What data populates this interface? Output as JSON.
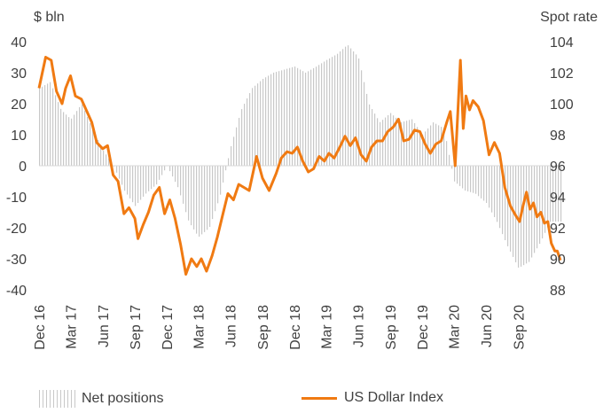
{
  "chart_data": {
    "type": "bar+line",
    "left_axis_unit": "$ bln",
    "right_axis_unit": "Spot rate",
    "left_ylim": [
      -40,
      40
    ],
    "left_ticks": [
      "40",
      "30",
      "20",
      "10",
      "0",
      "-10",
      "-20",
      "-30",
      "-40"
    ],
    "right_ylim": [
      88,
      104
    ],
    "right_ticks": [
      "104",
      "102",
      "100",
      "98",
      "96",
      "94",
      "92",
      "90",
      "88"
    ],
    "x_range": [
      "2016-12-01",
      "2020-12-31"
    ],
    "x_ticks": [
      {
        "label": "Dec 16",
        "date": "2016-12-01"
      },
      {
        "label": "Mar 17",
        "date": "2017-03-01"
      },
      {
        "label": "Jun 17",
        "date": "2017-06-01"
      },
      {
        "label": "Sep 17",
        "date": "2017-09-01"
      },
      {
        "label": "Dec 17",
        "date": "2017-12-01"
      },
      {
        "label": "Mar 18",
        "date": "2018-03-01"
      },
      {
        "label": "Jun 18",
        "date": "2018-06-01"
      },
      {
        "label": "Sep 18",
        "date": "2018-09-01"
      },
      {
        "label": "Dec 18",
        "date": "2018-12-01"
      },
      {
        "label": "Mar 19",
        "date": "2019-03-01"
      },
      {
        "label": "Jun 19",
        "date": "2019-06-01"
      },
      {
        "label": "Sep 19",
        "date": "2019-09-01"
      },
      {
        "label": "Dec 19",
        "date": "2019-12-01"
      },
      {
        "label": "Mar 20",
        "date": "2020-03-01"
      },
      {
        "label": "Jun 20",
        "date": "2020-06-01"
      },
      {
        "label": "Sep 20",
        "date": "2020-09-01"
      }
    ],
    "grid": false,
    "legend_placement": "bottom",
    "series": [
      {
        "name": "Net positions",
        "kind": "bar",
        "axis": "left",
        "color": "#c8c8c8",
        "points": [
          [
            "2016-12-01",
            25
          ],
          [
            "2017-01-01",
            27
          ],
          [
            "2017-02-01",
            18
          ],
          [
            "2017-03-01",
            15
          ],
          [
            "2017-04-01",
            20
          ],
          [
            "2017-05-01",
            12
          ],
          [
            "2017-06-01",
            5
          ],
          [
            "2017-07-01",
            0
          ],
          [
            "2017-08-01",
            -8
          ],
          [
            "2017-09-01",
            -13
          ],
          [
            "2017-10-01",
            -9
          ],
          [
            "2017-11-01",
            -6
          ],
          [
            "2017-12-01",
            0
          ],
          [
            "2018-01-01",
            -7
          ],
          [
            "2018-02-01",
            -18
          ],
          [
            "2018-03-01",
            -23
          ],
          [
            "2018-04-01",
            -20
          ],
          [
            "2018-05-01",
            -10
          ],
          [
            "2018-06-01",
            6
          ],
          [
            "2018-07-01",
            18
          ],
          [
            "2018-08-01",
            25
          ],
          [
            "2018-09-01",
            28
          ],
          [
            "2018-10-01",
            30
          ],
          [
            "2018-11-01",
            31
          ],
          [
            "2018-12-01",
            32
          ],
          [
            "2019-01-01",
            30
          ],
          [
            "2019-02-01",
            32
          ],
          [
            "2019-03-01",
            34
          ],
          [
            "2019-04-01",
            36
          ],
          [
            "2019-05-01",
            39
          ],
          [
            "2019-06-01",
            35
          ],
          [
            "2019-07-01",
            20
          ],
          [
            "2019-08-01",
            14
          ],
          [
            "2019-09-01",
            17
          ],
          [
            "2019-10-01",
            14
          ],
          [
            "2019-11-01",
            15
          ],
          [
            "2019-12-01",
            10
          ],
          [
            "2020-01-01",
            14
          ],
          [
            "2020-02-01",
            12
          ],
          [
            "2020-03-01",
            -5
          ],
          [
            "2020-04-01",
            -8
          ],
          [
            "2020-05-01",
            -9
          ],
          [
            "2020-06-01",
            -12
          ],
          [
            "2020-07-01",
            -18
          ],
          [
            "2020-08-01",
            -26
          ],
          [
            "2020-09-01",
            -33
          ],
          [
            "2020-10-01",
            -31
          ],
          [
            "2020-11-01",
            -25
          ],
          [
            "2020-12-01",
            -18
          ]
        ]
      },
      {
        "name": "US Dollar Index",
        "kind": "line",
        "axis": "right",
        "color": "#f07a12",
        "points": [
          [
            "2016-12-01",
            101.0
          ],
          [
            "2016-12-20",
            103.0
          ],
          [
            "2017-01-05",
            102.8
          ],
          [
            "2017-01-20",
            100.8
          ],
          [
            "2017-02-05",
            100.0
          ],
          [
            "2017-02-15",
            101.0
          ],
          [
            "2017-03-01",
            101.8
          ],
          [
            "2017-03-15",
            100.5
          ],
          [
            "2017-04-01",
            100.3
          ],
          [
            "2017-04-15",
            99.6
          ],
          [
            "2017-05-01",
            98.8
          ],
          [
            "2017-05-15",
            97.5
          ],
          [
            "2017-06-01",
            97.1
          ],
          [
            "2017-06-15",
            97.3
          ],
          [
            "2017-07-01",
            95.4
          ],
          [
            "2017-07-15",
            95.0
          ],
          [
            "2017-08-01",
            92.9
          ],
          [
            "2017-08-15",
            93.3
          ],
          [
            "2017-09-01",
            92.6
          ],
          [
            "2017-09-10",
            91.3
          ],
          [
            "2017-09-25",
            92.2
          ],
          [
            "2017-10-10",
            93.0
          ],
          [
            "2017-10-25",
            94.1
          ],
          [
            "2017-11-10",
            94.6
          ],
          [
            "2017-11-25",
            92.9
          ],
          [
            "2017-12-10",
            93.8
          ],
          [
            "2017-12-25",
            92.6
          ],
          [
            "2018-01-10",
            90.9
          ],
          [
            "2018-01-25",
            89.0
          ],
          [
            "2018-02-10",
            90.0
          ],
          [
            "2018-02-25",
            89.5
          ],
          [
            "2018-03-10",
            90.0
          ],
          [
            "2018-03-25",
            89.2
          ],
          [
            "2018-04-10",
            90.2
          ],
          [
            "2018-04-25",
            91.4
          ],
          [
            "2018-05-10",
            92.8
          ],
          [
            "2018-05-25",
            94.2
          ],
          [
            "2018-06-10",
            93.8
          ],
          [
            "2018-06-25",
            94.8
          ],
          [
            "2018-07-10",
            94.6
          ],
          [
            "2018-07-25",
            94.4
          ],
          [
            "2018-08-15",
            96.6
          ],
          [
            "2018-09-01",
            95.2
          ],
          [
            "2018-09-20",
            94.4
          ],
          [
            "2018-10-10",
            95.5
          ],
          [
            "2018-10-25",
            96.5
          ],
          [
            "2018-11-10",
            96.9
          ],
          [
            "2018-11-25",
            96.8
          ],
          [
            "2018-12-10",
            97.2
          ],
          [
            "2018-12-25",
            96.3
          ],
          [
            "2019-01-10",
            95.6
          ],
          [
            "2019-01-25",
            95.8
          ],
          [
            "2019-02-10",
            96.6
          ],
          [
            "2019-02-25",
            96.3
          ],
          [
            "2019-03-10",
            96.8
          ],
          [
            "2019-03-25",
            96.5
          ],
          [
            "2019-04-10",
            97.2
          ],
          [
            "2019-04-25",
            97.9
          ],
          [
            "2019-05-10",
            97.3
          ],
          [
            "2019-05-25",
            97.8
          ],
          [
            "2019-06-10",
            96.7
          ],
          [
            "2019-06-25",
            96.3
          ],
          [
            "2019-07-10",
            97.2
          ],
          [
            "2019-07-25",
            97.6
          ],
          [
            "2019-08-10",
            97.6
          ],
          [
            "2019-08-25",
            98.2
          ],
          [
            "2019-09-10",
            98.5
          ],
          [
            "2019-09-25",
            99.0
          ],
          [
            "2019-10-10",
            97.6
          ],
          [
            "2019-10-25",
            97.7
          ],
          [
            "2019-11-10",
            98.3
          ],
          [
            "2019-11-25",
            98.2
          ],
          [
            "2019-12-10",
            97.4
          ],
          [
            "2019-12-25",
            96.8
          ],
          [
            "2020-01-10",
            97.4
          ],
          [
            "2020-01-25",
            97.6
          ],
          [
            "2020-02-10",
            98.8
          ],
          [
            "2020-02-20",
            99.5
          ],
          [
            "2020-03-05",
            96.0
          ],
          [
            "2020-03-20",
            102.8
          ],
          [
            "2020-03-28",
            98.4
          ],
          [
            "2020-04-05",
            100.5
          ],
          [
            "2020-04-15",
            99.6
          ],
          [
            "2020-04-25",
            100.2
          ],
          [
            "2020-05-10",
            99.8
          ],
          [
            "2020-05-25",
            98.9
          ],
          [
            "2020-06-10",
            96.7
          ],
          [
            "2020-06-25",
            97.5
          ],
          [
            "2020-07-10",
            96.8
          ],
          [
            "2020-07-25",
            94.6
          ],
          [
            "2020-08-10",
            93.4
          ],
          [
            "2020-08-25",
            92.8
          ],
          [
            "2020-09-05",
            92.4
          ],
          [
            "2020-09-15",
            93.4
          ],
          [
            "2020-09-25",
            94.3
          ],
          [
            "2020-10-05",
            93.2
          ],
          [
            "2020-10-15",
            93.6
          ],
          [
            "2020-10-25",
            92.7
          ],
          [
            "2020-11-05",
            93.0
          ],
          [
            "2020-11-15",
            92.3
          ],
          [
            "2020-11-25",
            92.4
          ],
          [
            "2020-12-05",
            91.0
          ],
          [
            "2020-12-15",
            90.5
          ],
          [
            "2020-12-22",
            90.5
          ],
          [
            "2020-12-31",
            89.9
          ]
        ]
      }
    ]
  },
  "legend": {
    "bars_label": "Net positions",
    "line_label": "US Dollar Index",
    "line_color": "#f07a12"
  }
}
